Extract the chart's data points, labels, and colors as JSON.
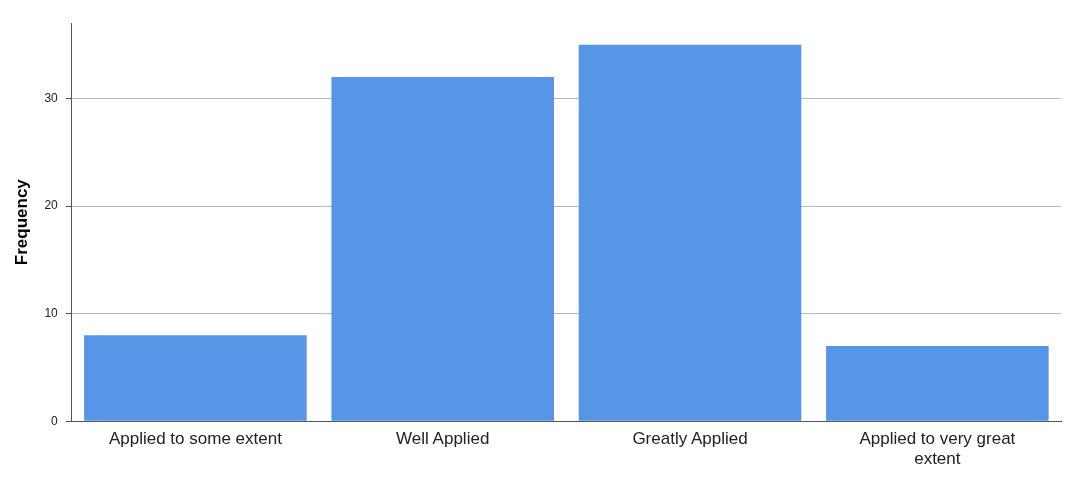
{
  "chart_data": {
    "type": "bar",
    "ylabel": "Frequency",
    "categories": [
      "Applied to some extent",
      "Well Applied",
      "Greatly Applied",
      "Applied to very great extent"
    ],
    "values": [
      8,
      32,
      35,
      7
    ],
    "color": "#5596e6",
    "ylim": [
      0,
      37
    ],
    "yticks": [
      0,
      10,
      20,
      30
    ],
    "grid": "y",
    "legend": false
  }
}
